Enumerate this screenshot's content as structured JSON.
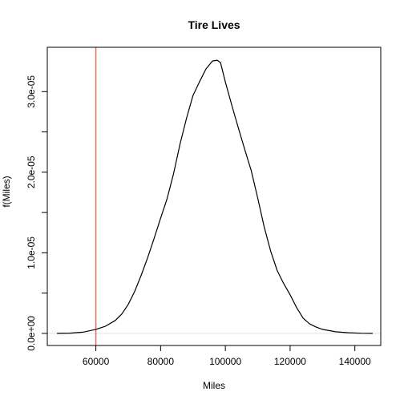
{
  "chart_data": {
    "type": "line",
    "title": "Tire Lives",
    "xlabel": "Miles",
    "ylabel": "f(Miles)",
    "xlim": [
      45000,
      148000
    ],
    "ylim": [
      -1.5e-06,
      3.55e-05
    ],
    "x_ticks": [
      60000,
      80000,
      100000,
      120000,
      140000
    ],
    "x_tick_labels": [
      "60000",
      "80000",
      "100000",
      "120000",
      "140000"
    ],
    "y_ticks": [
      0,
      5e-06,
      1e-05,
      1.5e-05,
      2e-05,
      2.5e-05,
      3e-05
    ],
    "y_tick_labels": [
      "0.0e+00",
      "",
      "1.0e-05",
      "",
      "2.0e-05",
      "",
      "3.0e-05"
    ],
    "zero_line_color": "#e0e0e0",
    "density_color": "#000000",
    "vline": {
      "x": 60000,
      "color": "#e07060"
    },
    "series": [
      {
        "x": [
          48000,
          52000,
          56000,
          60000,
          63000,
          66000,
          68000,
          70000,
          72000,
          74000,
          76000,
          78000,
          80000,
          82000,
          84000,
          86000,
          88000,
          90000,
          92000,
          94000,
          96000,
          97500,
          98500,
          100000,
          102000,
          104000,
          106000,
          108000,
          110000,
          112000,
          114000,
          116000,
          118000,
          120000,
          122000,
          124000,
          126000,
          128000,
          130000,
          134000,
          138000,
          142000,
          145500
        ],
        "y": [
          0.0,
          3e-08,
          1.5e-07,
          5e-07,
          9e-07,
          1.6e-06,
          2.4e-06,
          3.6e-06,
          5.2e-06,
          7.2e-06,
          9.4e-06,
          1.18e-05,
          1.43e-05,
          1.67e-05,
          1.98e-05,
          2.35e-05,
          2.67e-05,
          2.95e-05,
          3.12e-05,
          3.28e-05,
          3.38e-05,
          3.39e-05,
          3.36e-05,
          3.12e-05,
          2.83e-05,
          2.55e-05,
          2.28e-05,
          2.02e-05,
          1.68e-05,
          1.32e-05,
          1.02e-05,
          7.8e-06,
          6.2e-06,
          4.8e-06,
          3.2e-06,
          1.9e-06,
          1.2e-06,
          8e-07,
          5e-07,
          2e-07,
          8e-08,
          2e-08,
          0.0
        ]
      }
    ]
  }
}
